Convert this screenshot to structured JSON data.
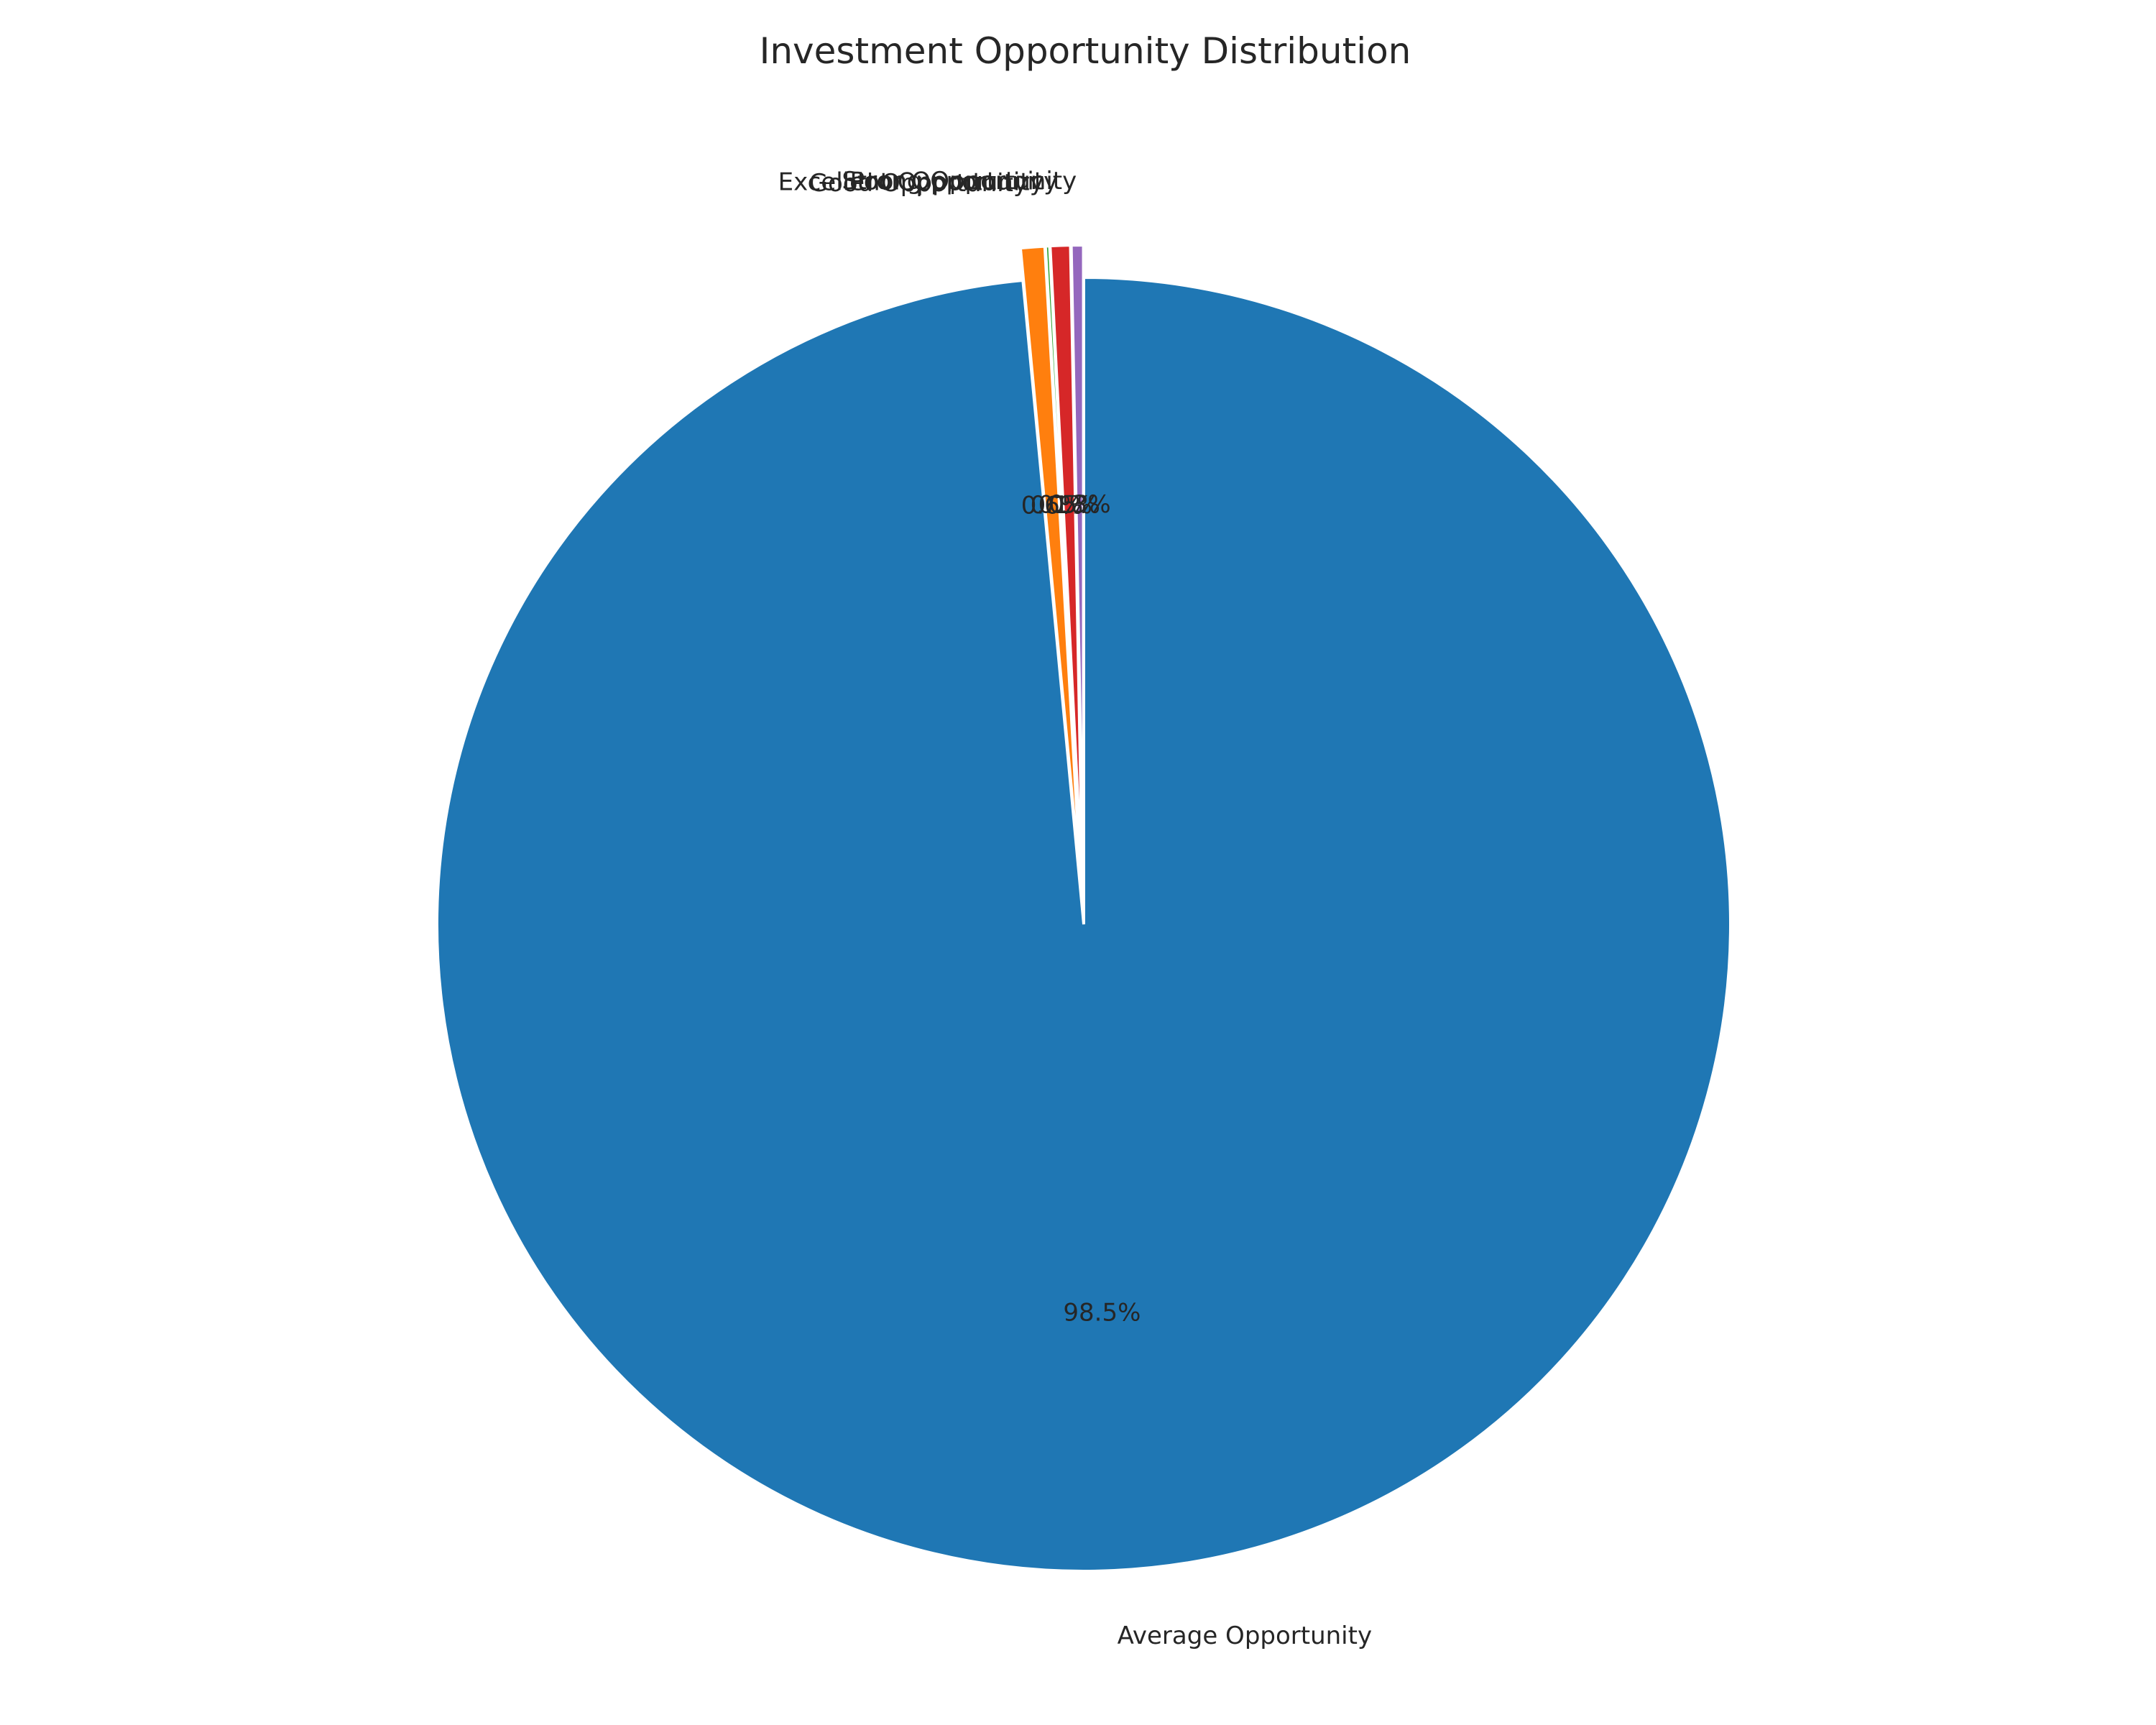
{
  "chart_data": {
    "type": "pie",
    "title": "Investment Opportunity Distribution",
    "slices": [
      {
        "label": "Average Opportunity",
        "value": 98.5,
        "pct_label": "98.5%",
        "color": "#1f77b4",
        "explode": false
      },
      {
        "label": "Good Opportunity",
        "value": 0.6,
        "pct_label": "0.6%",
        "color": "#ff7f0e",
        "explode": true
      },
      {
        "label": "Excellent Opportunity",
        "value": 0.1,
        "pct_label": "0.1%",
        "color": "#2ca02c",
        "explode": true
      },
      {
        "label": "Poor Opportunity",
        "value": 0.5,
        "pct_label": "0.5%",
        "color": "#d62728",
        "explode": true
      },
      {
        "label": "Strong Opportunity",
        "value": 0.3,
        "pct_label": "0.3%",
        "color": "#9467bd",
        "explode": true
      }
    ],
    "start_angle_deg": 90,
    "direction": "clockwise",
    "legend": "none"
  }
}
